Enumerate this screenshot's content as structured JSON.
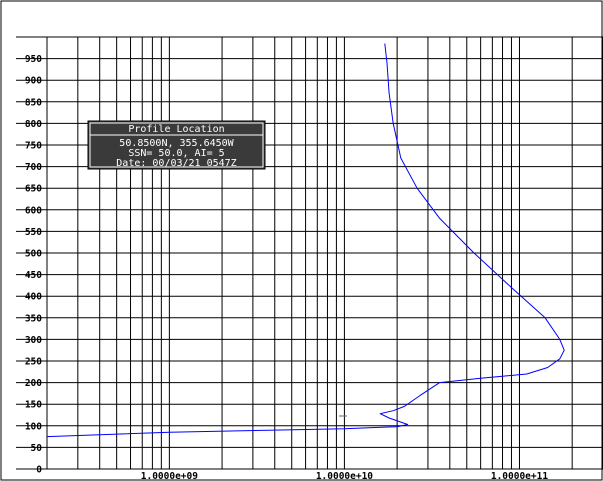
{
  "colors": {
    "background": "#ffffff",
    "grid": "#000000",
    "curve": "#0000ff",
    "info_box_bg": "#3a3a3a",
    "info_box_text": "#ffffff"
  },
  "info_box": {
    "title": "Profile Location",
    "lines": [
      "50.8500N, 355.6450W",
      "SSN= 50.0, AI=  5",
      "Date: 00/03/21 0547Z"
    ]
  },
  "chart_data": {
    "type": "line",
    "title": "",
    "xlabel": "",
    "ylabel": "",
    "x_scale": "log",
    "xlim": [
      200000000,
      300000000000
    ],
    "ylim": [
      0,
      1000
    ],
    "y_ticks": [
      0,
      50,
      100,
      150,
      200,
      250,
      300,
      350,
      400,
      450,
      500,
      550,
      600,
      650,
      700,
      750,
      800,
      850,
      900,
      950
    ],
    "x_tick_labels": [
      "1.0000e+09",
      "1.0000e+10",
      "1.0000e+11"
    ],
    "x_tick_values": [
      1000000000,
      10000000000,
      100000000000
    ],
    "grid": true,
    "series": [
      {
        "x": [
          200000000,
          1000000000,
          4000000000,
          10000000000,
          15000000000,
          20000000000,
          23000000000,
          18000000000,
          16000000000,
          19000000000,
          22000000000,
          27000000000,
          35000000000,
          60000000000,
          110000000000,
          145000000000,
          170000000000,
          180000000000,
          170000000000,
          140000000000,
          90000000000,
          55000000000,
          35000000000,
          26000000000,
          21000000000,
          19000000000,
          18000000000,
          17500000000,
          17000000000
        ],
        "y": [
          75,
          85,
          90,
          93,
          96,
          98,
          103,
          118,
          128,
          135,
          145,
          170,
          200,
          210,
          220,
          235,
          255,
          275,
          300,
          350,
          420,
          500,
          580,
          650,
          720,
          800,
          870,
          940,
          985
        ]
      }
    ]
  }
}
